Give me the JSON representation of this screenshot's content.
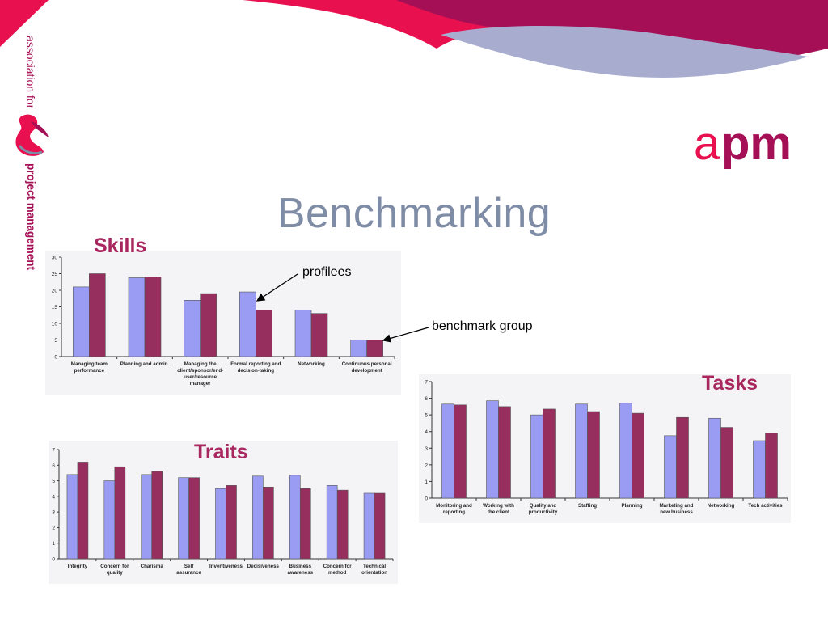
{
  "slide": {
    "title": "Benchmarking",
    "brand_side_top": "association for",
    "brand_side_bottom": "project management",
    "logo_a": "a",
    "logo_pm": "pm"
  },
  "colors": {
    "series_profilees": "#9a9cf4",
    "series_benchmark": "#962f5e",
    "accent": "#e8104f",
    "brand_purple": "#a50f55",
    "title": "#7f8ca6"
  },
  "labels": {
    "skills": "Skills",
    "traits": "Traits",
    "tasks": "Tasks",
    "callout_profilees": "profilees",
    "callout_benchmark": "benchmark group"
  },
  "chart_data": [
    {
      "id": "skills",
      "type": "bar",
      "title": "Skills",
      "ylim": [
        0,
        30
      ],
      "yticks": [
        0,
        5,
        10,
        15,
        20,
        25,
        30
      ],
      "grid": false,
      "categories": [
        [
          "Managing team",
          "performance"
        ],
        [
          "Planning and admin."
        ],
        [
          "Managing the",
          "client/sponsor/end-",
          "user/resource",
          "manager"
        ],
        [
          "Formal reporting and",
          "decision-taking"
        ],
        [
          "Networking"
        ],
        [
          "Continuous personal",
          "development"
        ]
      ],
      "series": [
        {
          "name": "profilees",
          "values": [
            21,
            23.8,
            17,
            19.5,
            14,
            5
          ]
        },
        {
          "name": "benchmark group",
          "values": [
            25,
            24,
            19,
            14,
            13,
            5
          ]
        }
      ]
    },
    {
      "id": "traits",
      "type": "bar",
      "title": "Traits",
      "ylim": [
        0,
        7
      ],
      "yticks": [
        0,
        1,
        2,
        3,
        4,
        5,
        6,
        7
      ],
      "grid": false,
      "categories": [
        [
          "Integrity"
        ],
        [
          "Concern for",
          "quality"
        ],
        [
          "Charisma"
        ],
        [
          "Self",
          "assurance"
        ],
        [
          "Inventiveness"
        ],
        [
          "Decisiveness"
        ],
        [
          "Business",
          "awareness"
        ],
        [
          "Concern for",
          "method"
        ],
        [
          "Technical",
          "orientation"
        ]
      ],
      "series": [
        {
          "name": "profilees",
          "values": [
            5.4,
            5.0,
            5.4,
            5.2,
            4.5,
            5.3,
            5.35,
            4.7,
            4.2
          ]
        },
        {
          "name": "benchmark group",
          "values": [
            6.2,
            5.9,
            5.6,
            5.2,
            4.7,
            4.6,
            4.5,
            4.4,
            4.2
          ]
        }
      ]
    },
    {
      "id": "tasks",
      "type": "bar",
      "title": "Tasks",
      "ylim": [
        0,
        7
      ],
      "yticks": [
        0,
        1,
        2,
        3,
        4,
        5,
        6,
        7
      ],
      "grid": false,
      "categories": [
        [
          "Monitoring and",
          "reporting"
        ],
        [
          "Working with",
          "the client"
        ],
        [
          "Quality and",
          "productivity"
        ],
        [
          "Staffing"
        ],
        [
          "Planning"
        ],
        [
          "Marketing and",
          "new business"
        ],
        [
          "Networking"
        ],
        [
          "Tech activities"
        ]
      ],
      "series": [
        {
          "name": "profilees",
          "values": [
            5.65,
            5.85,
            5.0,
            5.65,
            5.7,
            3.75,
            4.8,
            3.45
          ]
        },
        {
          "name": "benchmark group",
          "values": [
            5.6,
            5.5,
            5.35,
            5.2,
            5.1,
            4.85,
            4.25,
            3.9
          ]
        }
      ]
    }
  ]
}
